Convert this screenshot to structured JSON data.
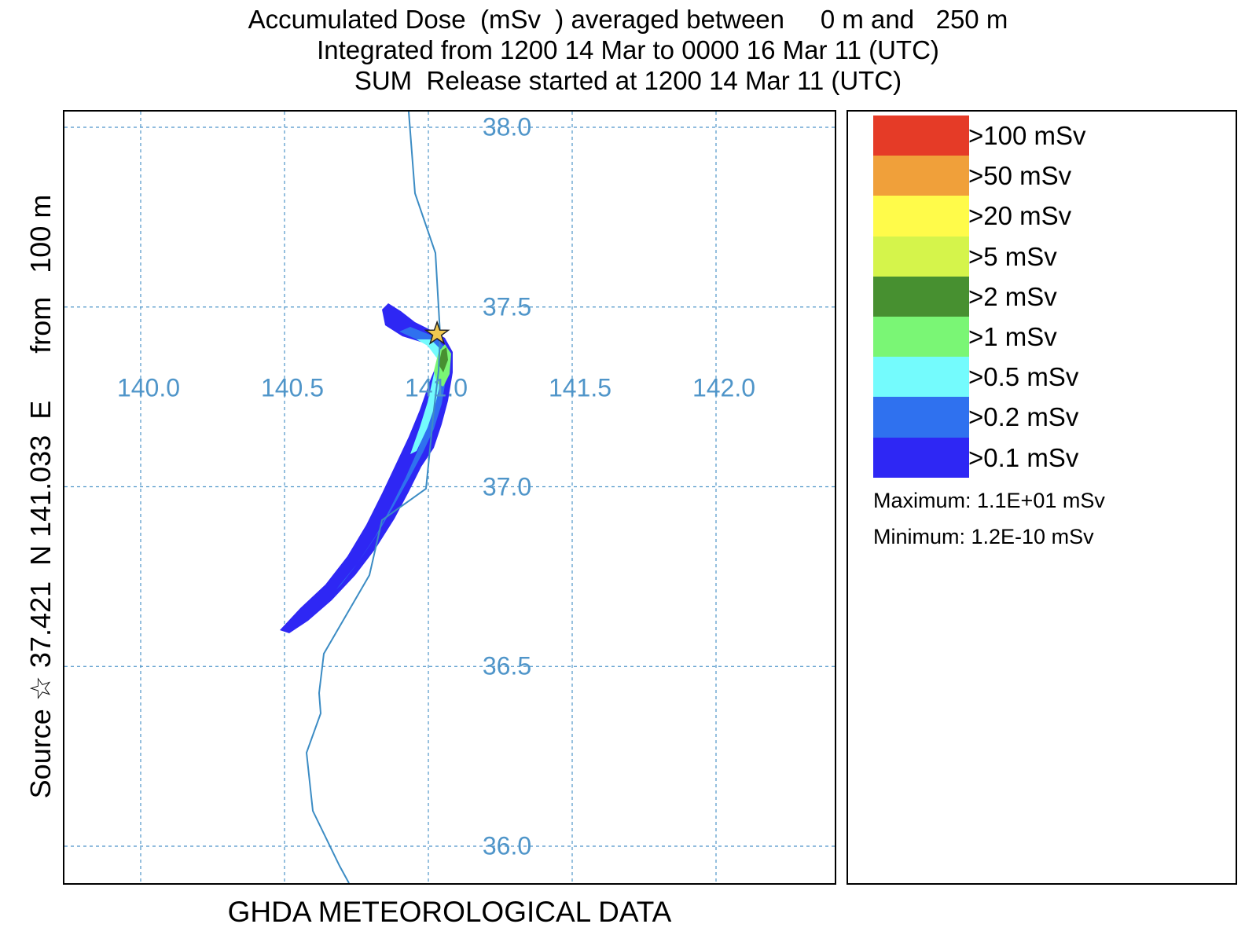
{
  "title": {
    "line1": "Accumulated Dose  (mSv  ) averaged between     0 m and   250 m",
    "line2": "Integrated from 1200 14 Mar to 0000 16 Mar 11 (UTC)",
    "line3": "SUM  Release started at 1200 14 Mar 11 (UTC)"
  },
  "side_label": "Source ☆ 37.421  N 141.033  E      from   100 m",
  "footer": "GHDA METEOROLOGICAL DATA",
  "map": {
    "lon_labels": [
      "140.0",
      "140.5",
      "141.0",
      "141.5",
      "142.0"
    ],
    "lat_labels": [
      "38.0",
      "37.5",
      "37.0",
      "36.5",
      "36.0"
    ],
    "source": {
      "lat": 37.421,
      "lon": 141.033
    },
    "grid_color": "#4f95c9",
    "coastline_color": "#3c8cc4"
  },
  "legend": {
    "items": [
      {
        "label": ">100 mSv",
        "color": "#e53b27"
      },
      {
        "label": ">50 mSv",
        "color": "#f0a03a"
      },
      {
        "label": ">20 mSv",
        "color": "#fffb4a"
      },
      {
        "label": ">5 mSv",
        "color": "#d5f44b"
      },
      {
        "label": ">2 mSv",
        "color": "#479030"
      },
      {
        "label": ">1 mSv",
        "color": "#7af675"
      },
      {
        "label": ">0.5 mSv",
        "color": "#74fbfd"
      },
      {
        "label": ">0.2 mSv",
        "color": "#2f71ef"
      },
      {
        "label": ">0.1 mSv",
        "color": "#2e27f4"
      }
    ],
    "maximum": "Maximum: 1.1E+01 mSv",
    "minimum": "Minimum: 1.2E-10 mSv"
  }
}
